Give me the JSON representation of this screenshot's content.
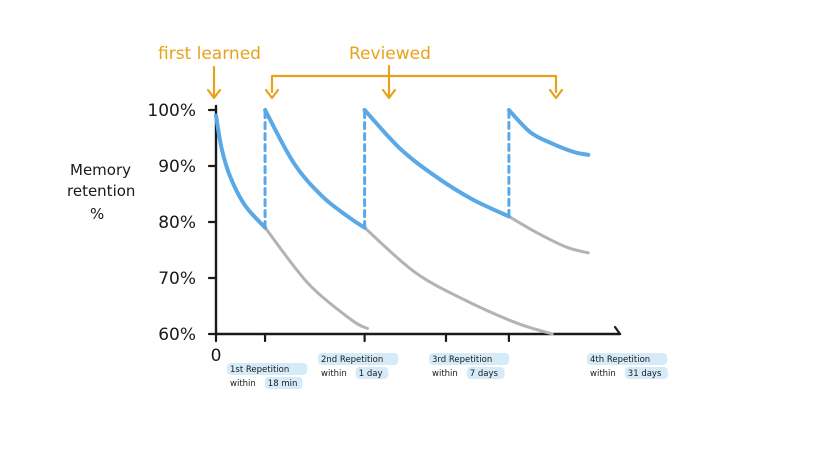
{
  "chart_data": {
    "type": "line",
    "title": "",
    "ylabel_lines": [
      "Memory",
      "retention",
      "%"
    ],
    "xlabel": "",
    "ylim": [
      60,
      100
    ],
    "yticks": [
      "100%",
      "90%",
      "80%",
      "70%",
      "60%"
    ],
    "x_origin_label": "0",
    "annotations": {
      "first_learned": "first learned",
      "reviewed": "Reviewed"
    },
    "repetitions": [
      {
        "line1": "1st Repetition",
        "line2_prefix": "within",
        "line2_value": "18 min"
      },
      {
        "line1": "2nd Repetition",
        "line2_prefix": "within",
        "line2_value": "1 day"
      },
      {
        "line1": "3rd Repetition",
        "line2_prefix": "within",
        "line2_value": "7 days"
      },
      {
        "line1": "4th Repetition",
        "line2_prefix": "within",
        "line2_value": "31 days"
      }
    ],
    "colors": {
      "annotation": "#e8a21a",
      "retention": "#5aa9e6",
      "forgetting": "#b3b3b3",
      "axis": "#1a1a1a",
      "label_highlight": "#d6ebf8"
    },
    "retention_segments": [
      {
        "x": [
          0,
          0.4,
          1,
          2,
          3.4
        ],
        "y": [
          99,
          93,
          88,
          83,
          79
        ]
      },
      {
        "x": [
          3.4,
          5.4,
          7.4,
          9.4,
          10.3
        ],
        "y": [
          100,
          90.5,
          84.5,
          80.5,
          79
        ]
      },
      {
        "x": [
          10.3,
          12.8,
          15.3,
          17.8,
          20.3
        ],
        "y": [
          100,
          93,
          88,
          84,
          81
        ]
      },
      {
        "x": [
          20.3,
          21.8,
          23.3,
          24.8,
          25.8
        ],
        "y": [
          100,
          96,
          94,
          92.5,
          92
        ]
      }
    ],
    "forgetting_curves": [
      {
        "x": [
          3.4,
          6.4,
          9.4,
          10.5
        ],
        "y": [
          79,
          69,
          62.5,
          61
        ]
      },
      {
        "x": [
          10.3,
          13.8,
          17.3,
          20.8,
          23.3
        ],
        "y": [
          79,
          71,
          66,
          62,
          60
        ]
      },
      {
        "x": [
          20.3,
          22.3,
          24.3,
          25.8
        ],
        "y": [
          81,
          78,
          75.5,
          74.5
        ]
      }
    ],
    "review_drops": [
      {
        "x": 3.4,
        "from": 79,
        "to": 100
      },
      {
        "x": 10.3,
        "from": 79,
        "to": 100
      },
      {
        "x": 20.3,
        "from": 81,
        "to": 100
      }
    ]
  }
}
